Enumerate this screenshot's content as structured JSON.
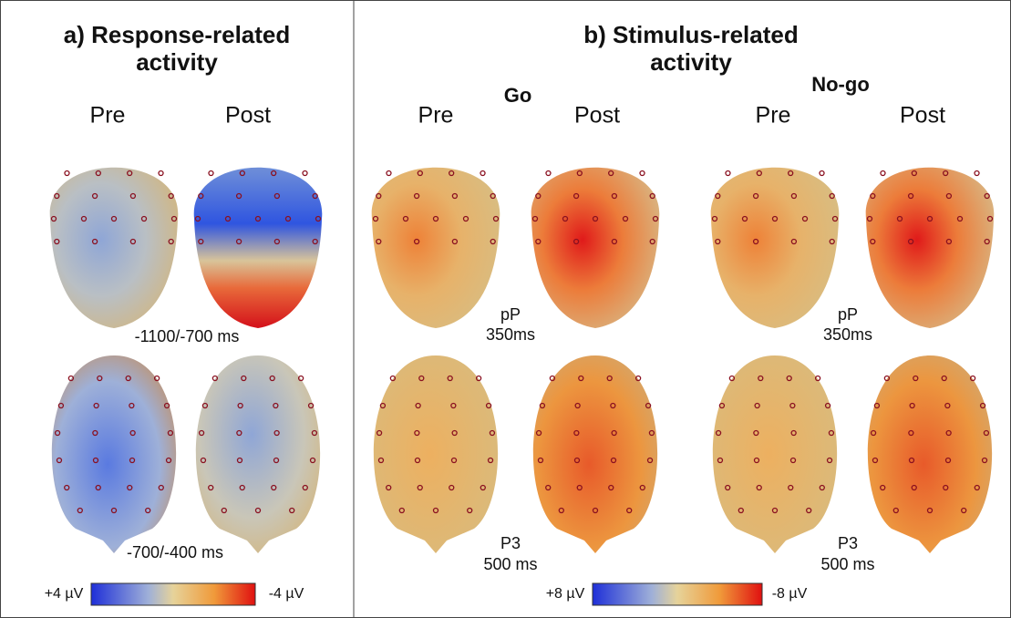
{
  "panels": [
    {
      "title": [
        "a) Response-related",
        "activity"
      ],
      "columns": [
        "Pre",
        "Post"
      ],
      "rows": [
        "-1100/-700 ms",
        "-700/-400 ms"
      ],
      "scale": [
        "+4 µV",
        "-4 µV"
      ]
    },
    {
      "title": [
        "b) Stimulus-related",
        "activity"
      ],
      "groups": [
        {
          "name": "Go",
          "columns": [
            "Pre",
            "Post"
          ]
        },
        {
          "name": "No-go",
          "columns": [
            "Pre",
            "Post"
          ]
        }
      ],
      "rows": [
        [
          "pP",
          "350ms"
        ],
        [
          "P3",
          "500 ms"
        ]
      ],
      "scale": [
        "+8 µV",
        "-8 µV"
      ]
    }
  ]
}
